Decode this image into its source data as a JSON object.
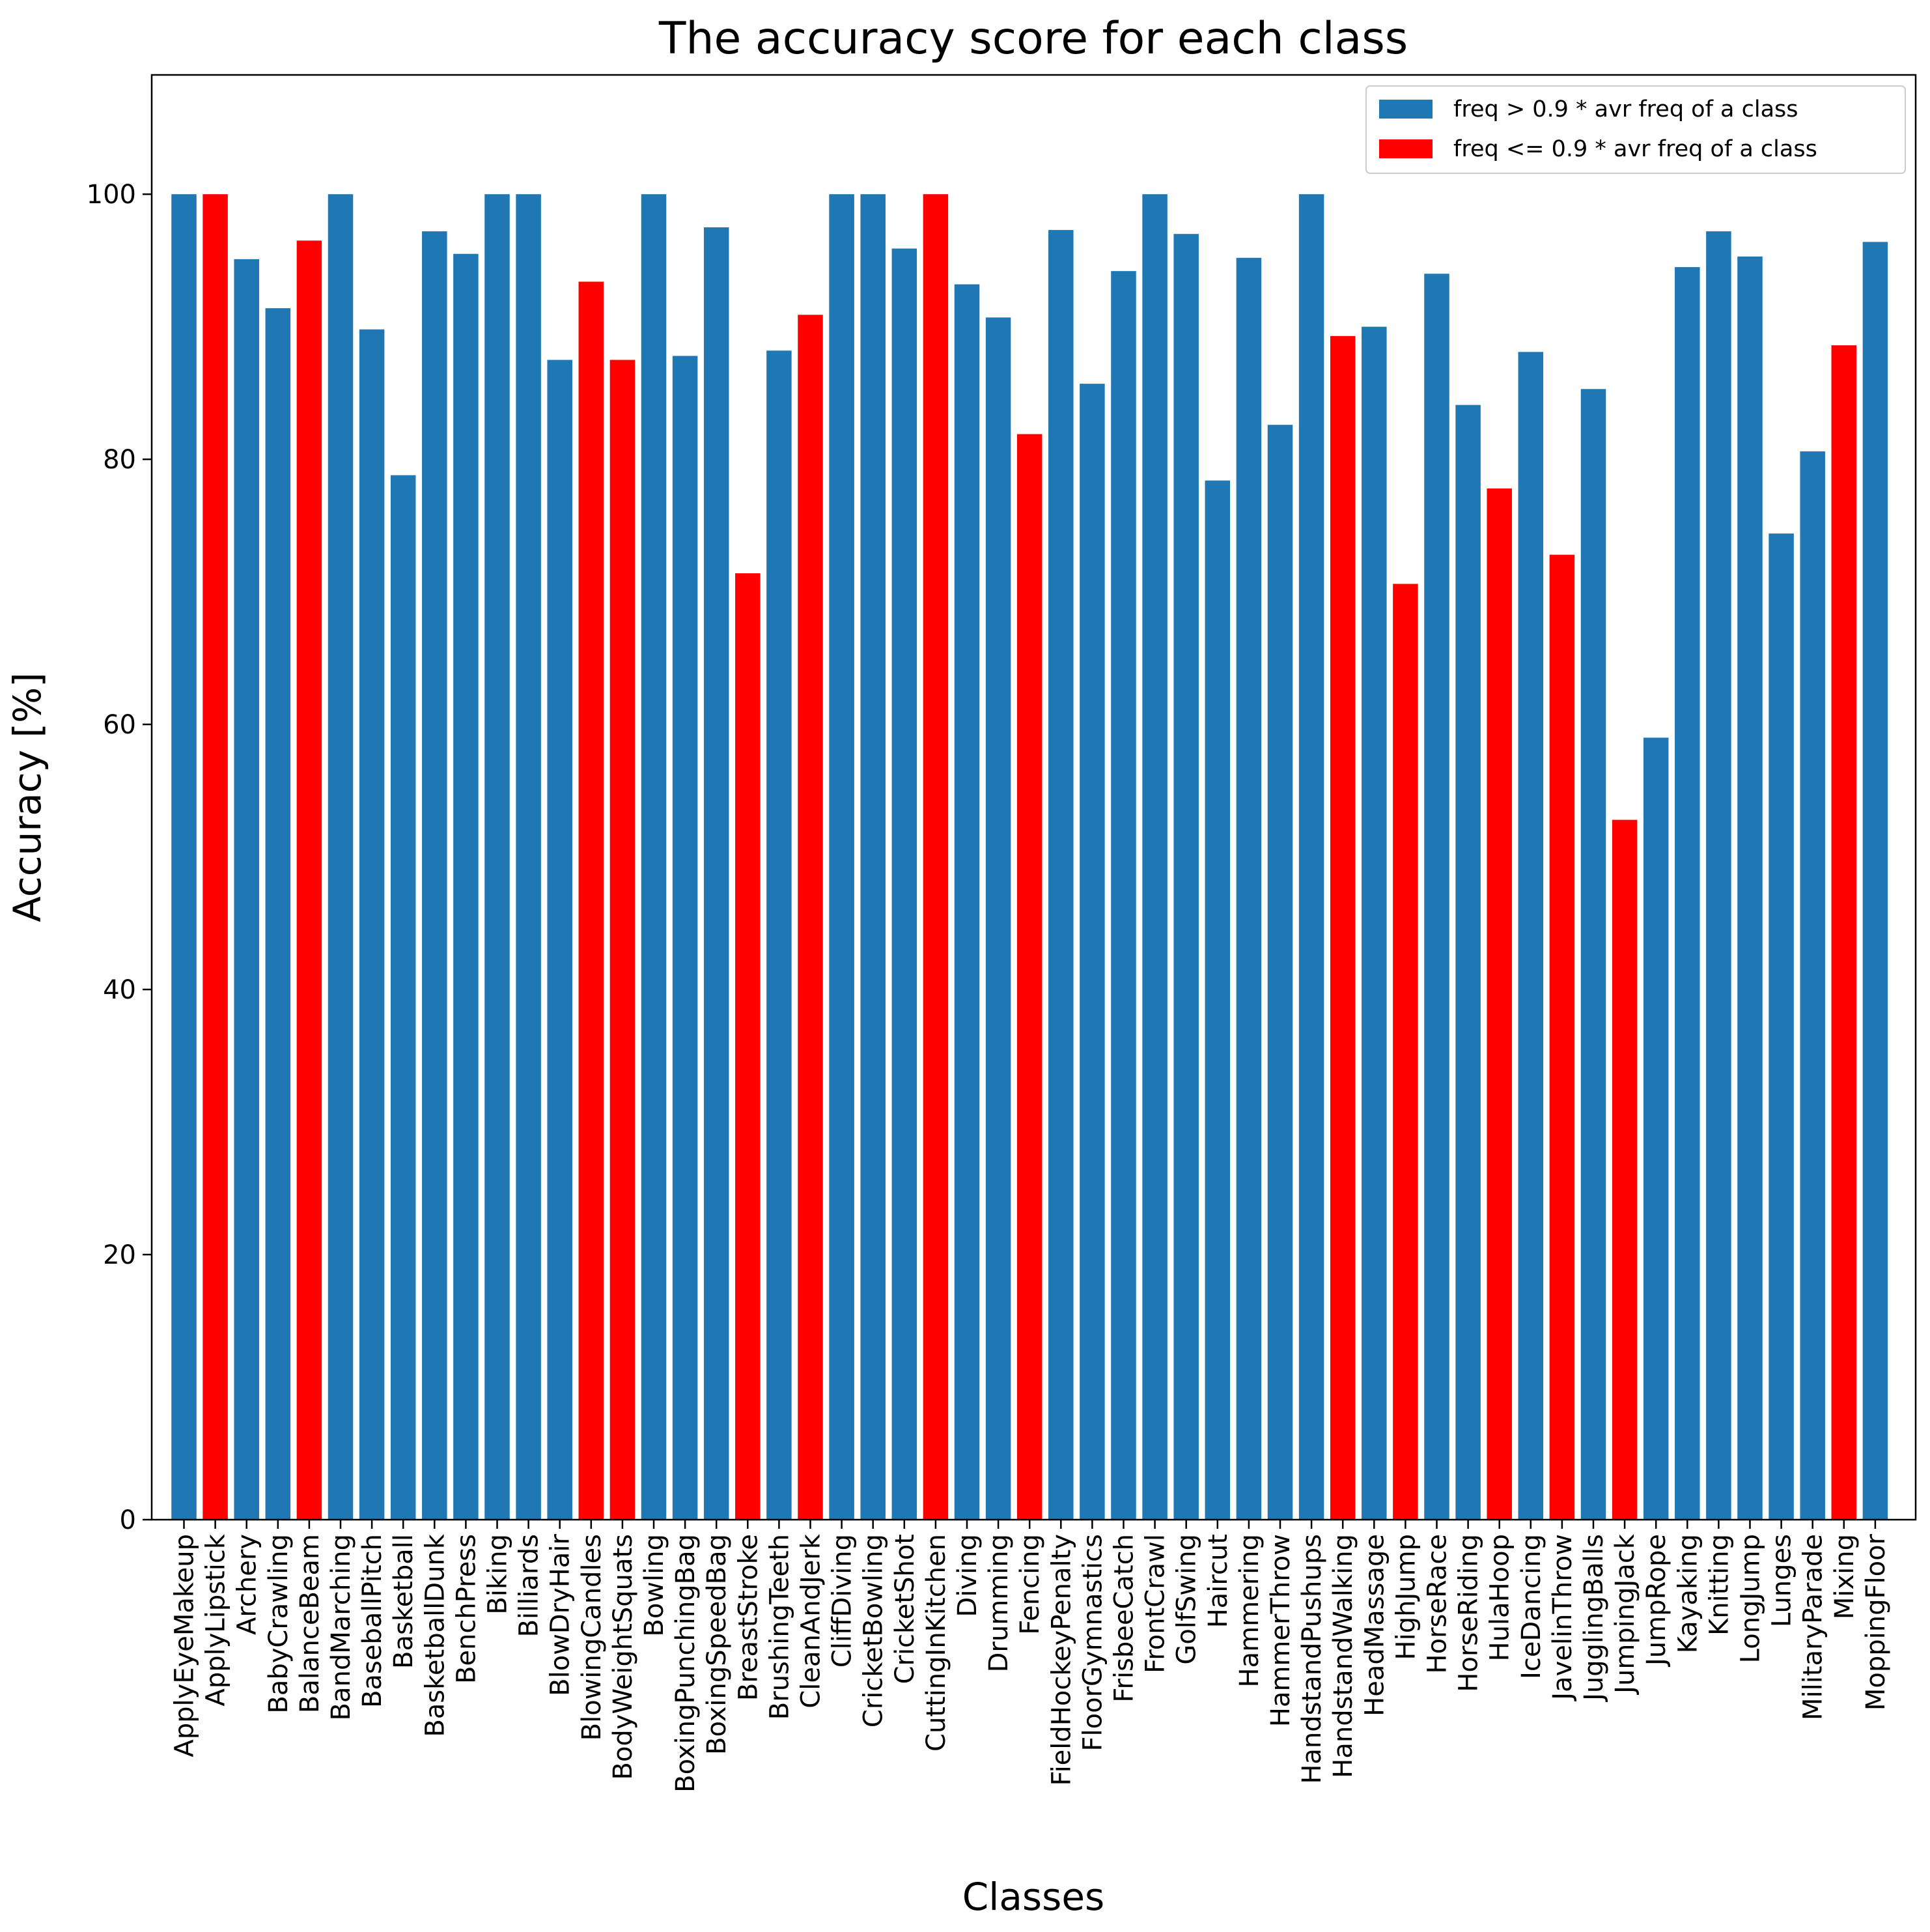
{
  "chart_data": {
    "type": "bar",
    "title": "The accuracy score for each class",
    "xlabel": "Classes",
    "ylabel": "Accuracy [%]",
    "ylim": [
      0,
      109
    ],
    "yticks": [
      0,
      20,
      40,
      60,
      80,
      100
    ],
    "grid": false,
    "legend_position": "top-right",
    "legend": [
      {
        "label": "freq > 0.9 * avr freq of a class",
        "color": "#1f77b4"
      },
      {
        "label": "freq <= 0.9 * avr freq of a class",
        "color": "#ff0000"
      }
    ],
    "colors": {
      "high_freq": "#1f77b4",
      "low_freq": "#ff0000"
    },
    "categories": [
      "ApplyEyeMakeup",
      "ApplyLipstick",
      "Archery",
      "BabyCrawling",
      "BalanceBeam",
      "BandMarching",
      "BaseballPitch",
      "Basketball",
      "BasketballDunk",
      "BenchPress",
      "Biking",
      "Billiards",
      "BlowDryHair",
      "BlowingCandles",
      "BodyWeightSquats",
      "Bowling",
      "BoxingPunchingBag",
      "BoxingSpeedBag",
      "BreastStroke",
      "BrushingTeeth",
      "CleanAndJerk",
      "CliffDiving",
      "CricketBowling",
      "CricketShot",
      "CuttingInKitchen",
      "Diving",
      "Drumming",
      "Fencing",
      "FieldHockeyPenalty",
      "FloorGymnastics",
      "FrisbeeCatch",
      "FrontCrawl",
      "GolfSwing",
      "Haircut",
      "Hammering",
      "HammerThrow",
      "HandstandPushups",
      "HandstandWalking",
      "HeadMassage",
      "HighJump",
      "HorseRace",
      "HorseRiding",
      "HulaHoop",
      "IceDancing",
      "JavelinThrow",
      "JugglingBalls",
      "JumpingJack",
      "JumpRope",
      "Kayaking",
      "Knitting",
      "LongJump",
      "Lunges",
      "MilitaryParade",
      "Mixing",
      "MoppingFloor"
    ],
    "values": [
      100,
      100,
      95.1,
      91.4,
      96.5,
      100,
      89.8,
      78.8,
      97.2,
      95.5,
      100,
      100,
      87.5,
      93.4,
      87.5,
      100,
      87.8,
      97.5,
      71.4,
      88.2,
      90.9,
      100,
      100,
      95.9,
      100,
      93.2,
      90.7,
      81.9,
      97.3,
      85.7,
      94.2,
      100,
      97.0,
      78.4,
      95.2,
      82.6,
      100,
      89.3,
      90.0,
      70.6,
      94.0,
      84.1,
      77.8,
      88.1,
      72.8,
      85.3,
      52.8,
      59.0,
      94.5,
      97.2,
      95.3,
      74.4,
      80.6,
      88.6,
      96.4
    ],
    "groups": [
      "high",
      "low",
      "high",
      "high",
      "low",
      "high",
      "high",
      "high",
      "high",
      "high",
      "high",
      "high",
      "high",
      "low",
      "low",
      "high",
      "high",
      "high",
      "low",
      "high",
      "low",
      "high",
      "high",
      "high",
      "low",
      "high",
      "high",
      "low",
      "high",
      "high",
      "high",
      "high",
      "high",
      "high",
      "high",
      "high",
      "high",
      "low",
      "high",
      "low",
      "high",
      "high",
      "low",
      "high",
      "low",
      "high",
      "low",
      "high",
      "high",
      "high",
      "high",
      "high",
      "high",
      "low",
      "high"
    ]
  }
}
